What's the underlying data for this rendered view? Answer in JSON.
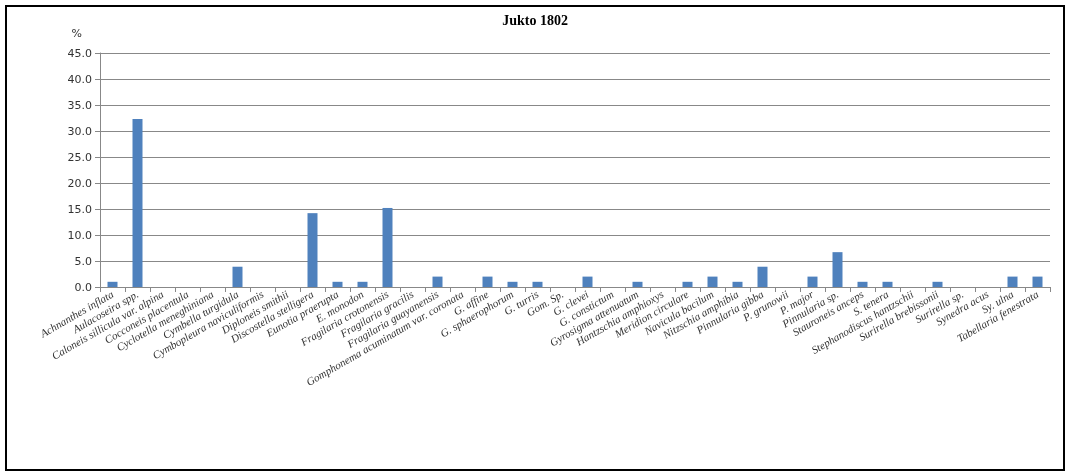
{
  "chart_data": {
    "type": "bar",
    "title": "Jukto 1802",
    "ylabel": "%",
    "categories": [
      "Achnanthes inflata",
      "Aulacoseira spp.",
      "Caloneis sillicula var. alpina",
      "Cocconeis placentula",
      "Cyclotella meneghiniana",
      "Cymbella turgidula",
      "Cymbopleura naviculiformis",
      "Diploneis smithii",
      "Discostella stelligera",
      "Eunotia praerupta",
      "E. monodon",
      "Fragilaria crotonensis",
      "Fragilaria gracilis",
      "Fragilaria guayanensis",
      "Gomphonema acuminatum var. coronata",
      "G. affine",
      "G. sphaerophorum",
      "G. turris",
      "Gom. Sp.",
      "G. clevei",
      "G. constictum",
      "Gyrosigma attenuatum",
      "Hantzschia amphioxys",
      "Meridion circulare",
      "Navicula bacilum",
      "Nitzschia amphibia",
      "Pinnularia gibba",
      "P. grunowii",
      "P. major",
      "Pinnularia sp.",
      "Stauroneis anceps",
      "S. tenera",
      "Stephanodiscus hantzschii",
      "Surirella brebissonii",
      "Surirella sp.",
      "Synedra acus",
      "Sy. ulna",
      "Tabellaria fenestrata"
    ],
    "values": [
      1.0,
      32.3,
      0,
      0,
      0,
      3.9,
      0,
      0,
      14.2,
      1.0,
      1.0,
      15.2,
      0,
      2.0,
      0,
      2.0,
      1.0,
      1.0,
      0,
      2.0,
      0,
      1.0,
      0,
      1.0,
      2.0,
      1.0,
      3.9,
      0,
      2.0,
      6.7,
      1.0,
      1.0,
      0,
      1.0,
      0,
      0,
      2.0,
      2.0
    ],
    "color": "#4f81bd",
    "ylim": [
      0,
      45
    ],
    "yticks": [
      {
        "value": 0,
        "label": "0.0"
      },
      {
        "value": 5,
        "label": "5.0"
      },
      {
        "value": 10,
        "label": "10.0"
      },
      {
        "value": 15,
        "label": "15.0"
      },
      {
        "value": 20,
        "label": "20.0"
      },
      {
        "value": 25,
        "label": "25.0"
      },
      {
        "value": 30,
        "label": "30.0"
      },
      {
        "value": 35,
        "label": "35.0"
      },
      {
        "value": 40,
        "label": "40.0"
      },
      {
        "value": 45,
        "label": "45.0"
      }
    ],
    "grid": "y"
  }
}
